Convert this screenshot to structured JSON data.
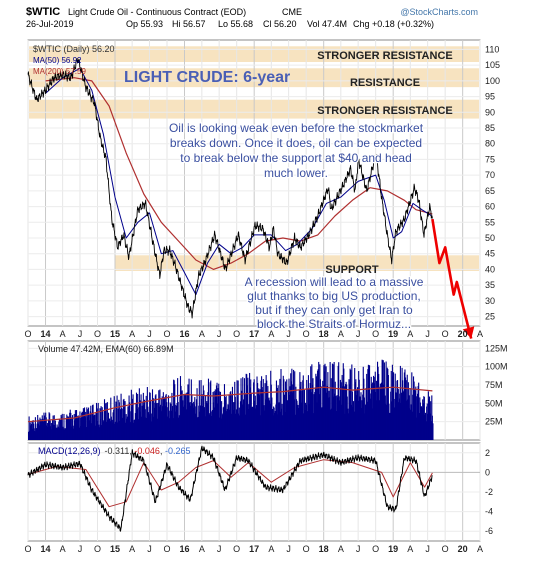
{
  "header": {
    "symbol": "$WTIC",
    "name": "Light Crude Oil - Continuous Contract (EOD)",
    "exchange": "CME",
    "date": "26-Jul-2019",
    "open": "Op 55.93",
    "high": "Hi 56.57",
    "low": "Lo 55.68",
    "close": "Cl 56.20",
    "volume": "Vol 47.4M",
    "change": "Chg +0.18 (+0.32%)",
    "brand": "@StockCharts.com"
  },
  "legend": {
    "price": "$WTIC (Daily) 56.20",
    "ma50": "MA(50) 56.92",
    "ma200": "MA(200) 57.59",
    "volume": "Volume 47.42M, EMA(60) 66.89M",
    "macd_label": "MACD(12,26,9)",
    "macd_v1": "-0.311",
    "macd_v2": "-0.046",
    "macd_v3": "-0.265"
  },
  "annotations": {
    "title": "LIGHT CRUDE: 6-year",
    "zone_stronger_top": "STRONGER RESISTANCE",
    "zone_resistance": "RESISTANCE",
    "zone_stronger_mid": "STRONGER RESISTANCE",
    "zone_support": "SUPPORT",
    "note_top": [
      "Oil is looking weak even before the stockmarket",
      "breaks down. Once it does, oil can be expected",
      "to break below the support at $40 and head",
      "much lower."
    ],
    "note_bottom": [
      "A recession will lead to a massive",
      "glut thanks to big US production,",
      "but if they can only get Iran to",
      "block the Straits of Hormuz..."
    ]
  },
  "colors": {
    "price": "#000000",
    "ma50": "#00008b",
    "ma200": "#b03030",
    "volume": "#00008b",
    "arrow": "#ee0000",
    "zone": "#f5dcb0",
    "annotation_text": "#3a4fa0"
  },
  "chart_data": [
    {
      "type": "line",
      "title": "$WTIC (Daily)",
      "y_axis": {
        "ticks": [
          110,
          105,
          100,
          95,
          90,
          85,
          80,
          75,
          70,
          65,
          60,
          55,
          50,
          45,
          40,
          35,
          30,
          25
        ],
        "range": [
          22,
          113
        ]
      },
      "x_axis": {
        "ticks": [
          "O",
          "14",
          "A",
          "J",
          "O",
          "15",
          "A",
          "J",
          "O",
          "16",
          "A",
          "J",
          "O",
          "17",
          "A",
          "J",
          "O",
          "18",
          "A",
          "J",
          "O",
          "19",
          "A",
          "J",
          "O",
          "20",
          "A"
        ],
        "range": [
          "2013-10-01",
          "2020-04-01"
        ]
      },
      "zones": [
        {
          "label": "STRONGER RESISTANCE",
          "range": [
            106,
            111
          ]
        },
        {
          "label": "RESISTANCE",
          "range": [
            98,
            104
          ]
        },
        {
          "label": "STRONGER RESISTANCE",
          "range": [
            88,
            94
          ]
        },
        {
          "label": "SUPPORT",
          "range": [
            39.5,
            44.5
          ]
        }
      ],
      "series": [
        {
          "name": "$WTIC",
          "points": [
            [
              "2013-10-01",
              102
            ],
            [
              "2013-11-15",
              94
            ],
            [
              "2014-01-01",
              97
            ],
            [
              "2014-02-15",
              101
            ],
            [
              "2014-04-01",
              102
            ],
            [
              "2014-05-15",
              101
            ],
            [
              "2014-06-20",
              107
            ],
            [
              "2014-08-01",
              98
            ],
            [
              "2014-09-15",
              93
            ],
            [
              "2014-10-15",
              82
            ],
            [
              "2014-11-15",
              75
            ],
            [
              "2014-12-15",
              56
            ],
            [
              "2015-01-15",
              47
            ],
            [
              "2015-02-15",
              51
            ],
            [
              "2015-03-15",
              44
            ],
            [
              "2015-05-01",
              59
            ],
            [
              "2015-06-10",
              61
            ],
            [
              "2015-07-15",
              50
            ],
            [
              "2015-08-24",
              38
            ],
            [
              "2015-09-15",
              46
            ],
            [
              "2015-10-15",
              46
            ],
            [
              "2015-11-15",
              41
            ],
            [
              "2015-12-15",
              35
            ],
            [
              "2016-01-20",
              28
            ],
            [
              "2016-02-11",
              26
            ],
            [
              "2016-03-15",
              38
            ],
            [
              "2016-04-15",
              42
            ],
            [
              "2016-06-08",
              51
            ],
            [
              "2016-08-03",
              40
            ],
            [
              "2016-10-10",
              51
            ],
            [
              "2016-11-14",
              43
            ],
            [
              "2017-01-06",
              54
            ],
            [
              "2017-02-15",
              53
            ],
            [
              "2017-03-22",
              47
            ],
            [
              "2017-04-12",
              53
            ],
            [
              "2017-05-05",
              45
            ],
            [
              "2017-06-21",
              42
            ],
            [
              "2017-08-01",
              50
            ],
            [
              "2017-09-01",
              47
            ],
            [
              "2017-10-15",
              51
            ],
            [
              "2017-12-01",
              57
            ],
            [
              "2018-01-25",
              66
            ],
            [
              "2018-02-09",
              59
            ],
            [
              "2018-04-15",
              67
            ],
            [
              "2018-05-22",
              72
            ],
            [
              "2018-06-15",
              65
            ],
            [
              "2018-07-03",
              75
            ],
            [
              "2018-08-15",
              65
            ],
            [
              "2018-10-03",
              77
            ],
            [
              "2018-11-01",
              63
            ],
            [
              "2018-12-01",
              51
            ],
            [
              "2018-12-24",
              43
            ],
            [
              "2019-01-15",
              52
            ],
            [
              "2019-03-01",
              56
            ],
            [
              "2019-04-23",
              66
            ],
            [
              "2019-05-15",
              62
            ],
            [
              "2019-06-12",
              51
            ],
            [
              "2019-07-11",
              60
            ],
            [
              "2019-07-26",
              56.2
            ]
          ]
        },
        {
          "name": "MA(50)",
          "points": [
            [
              "2014-01-01",
              96
            ],
            [
              "2014-04-01",
              101
            ],
            [
              "2014-07-01",
              104
            ],
            [
              "2014-09-01",
              97
            ],
            [
              "2014-11-01",
              83
            ],
            [
              "2015-01-01",
              63
            ],
            [
              "2015-03-01",
              50
            ],
            [
              "2015-05-01",
              55
            ],
            [
              "2015-07-01",
              58
            ],
            [
              "2015-09-01",
              45
            ],
            [
              "2015-11-01",
              46
            ],
            [
              "2016-01-01",
              39
            ],
            [
              "2016-03-01",
              32
            ],
            [
              "2016-05-01",
              42
            ],
            [
              "2016-07-01",
              48
            ],
            [
              "2016-09-01",
              45
            ],
            [
              "2016-11-01",
              47
            ],
            [
              "2017-01-01",
              51
            ],
            [
              "2017-04-01",
              51
            ],
            [
              "2017-06-15",
              46
            ],
            [
              "2017-08-15",
              48
            ],
            [
              "2017-11-01",
              53
            ],
            [
              "2018-01-15",
              61
            ],
            [
              "2018-04-01",
              63
            ],
            [
              "2018-07-01",
              68
            ],
            [
              "2018-10-01",
              70
            ],
            [
              "2018-11-15",
              62
            ],
            [
              "2019-01-01",
              50
            ],
            [
              "2019-02-15",
              52
            ],
            [
              "2019-04-15",
              61
            ],
            [
              "2019-06-01",
              59
            ],
            [
              "2019-07-26",
              56.92
            ]
          ]
        },
        {
          "name": "MA(200)",
          "points": [
            [
              "2014-01-01",
              100
            ],
            [
              "2014-06-01",
              101
            ],
            [
              "2014-09-01",
              100
            ],
            [
              "2014-12-01",
              92
            ],
            [
              "2015-03-01",
              77
            ],
            [
              "2015-06-01",
              64
            ],
            [
              "2015-09-01",
              55
            ],
            [
              "2015-12-01",
              49
            ],
            [
              "2016-03-01",
              43
            ],
            [
              "2016-06-01",
              40
            ],
            [
              "2016-09-01",
              42
            ],
            [
              "2016-12-01",
              45
            ],
            [
              "2017-03-01",
              49
            ],
            [
              "2017-06-01",
              50
            ],
            [
              "2017-09-01",
              49
            ],
            [
              "2017-12-01",
              51
            ],
            [
              "2018-03-01",
              57
            ],
            [
              "2018-06-01",
              62
            ],
            [
              "2018-09-01",
              66
            ],
            [
              "2018-12-01",
              65
            ],
            [
              "2019-03-01",
              62
            ],
            [
              "2019-05-01",
              59
            ],
            [
              "2019-07-26",
              57.59
            ]
          ]
        },
        {
          "name": "projection",
          "points": [
            [
              "2019-07-26",
              56
            ],
            [
              "2019-09-01",
              42
            ],
            [
              "2019-10-01",
              47
            ],
            [
              "2019-11-15",
              32
            ],
            [
              "2019-12-01",
              36
            ],
            [
              "2020-02-15",
              18
            ]
          ]
        }
      ]
    },
    {
      "type": "bar",
      "title": "Volume",
      "y_axis": {
        "ticks": [
          "125M",
          "100M",
          "75M",
          "50M",
          "25M"
        ]
      },
      "range": [
        0,
        135
      ],
      "series": [
        {
          "name": "Volume (M)",
          "points": [
            [
              "2013-10-01",
              25
            ],
            [
              "2014-01-01",
              28
            ],
            [
              "2014-04-01",
              30
            ],
            [
              "2014-07-01",
              33
            ],
            [
              "2014-10-01",
              38
            ],
            [
              "2015-01-01",
              48
            ],
            [
              "2015-04-01",
              52
            ],
            [
              "2015-07-01",
              55
            ],
            [
              "2015-10-01",
              58
            ],
            [
              "2016-01-01",
              68
            ],
            [
              "2016-04-01",
              65
            ],
            [
              "2016-07-01",
              62
            ],
            [
              "2016-10-01",
              66
            ],
            [
              "2017-01-01",
              70
            ],
            [
              "2017-04-01",
              72
            ],
            [
              "2017-07-01",
              74
            ],
            [
              "2017-10-01",
              76
            ],
            [
              "2018-01-01",
              82
            ],
            [
              "2018-04-01",
              78
            ],
            [
              "2018-07-01",
              76
            ],
            [
              "2018-10-01",
              84
            ],
            [
              "2019-01-01",
              80
            ],
            [
              "2019-04-01",
              72
            ],
            [
              "2019-07-26",
              47.42
            ]
          ]
        },
        {
          "name": "EMA(60)",
          "points": [
            [
              "2013-10-01",
              25
            ],
            [
              "2014-06-01",
              30
            ],
            [
              "2015-01-01",
              44
            ],
            [
              "2015-06-01",
              52
            ],
            [
              "2016-01-01",
              62
            ],
            [
              "2016-06-01",
              60
            ],
            [
              "2017-01-01",
              64
            ],
            [
              "2017-06-01",
              66
            ],
            [
              "2018-01-01",
              72
            ],
            [
              "2018-06-01",
              68
            ],
            [
              "2019-01-01",
              72
            ],
            [
              "2019-07-26",
              66.89
            ]
          ]
        }
      ]
    },
    {
      "type": "line",
      "title": "MACD(12,26,9)",
      "y_axis": {
        "ticks": [
          2,
          0,
          -2,
          -4,
          -6
        ],
        "range": [
          -7,
          3
        ]
      },
      "series": [
        {
          "name": "MACD",
          "points": [
            [
              "2013-10-01",
              -0.3
            ],
            [
              "2014-01-01",
              0.8
            ],
            [
              "2014-04-01",
              0.5
            ],
            [
              "2014-07-01",
              0.9
            ],
            [
              "2014-09-01",
              -1.8
            ],
            [
              "2014-12-01",
              -4.5
            ],
            [
              "2015-02-01",
              -5.8
            ],
            [
              "2015-04-01",
              2.0
            ],
            [
              "2015-06-01",
              1.2
            ],
            [
              "2015-08-01",
              -3.0
            ],
            [
              "2015-10-01",
              0.8
            ],
            [
              "2015-12-01",
              -1.5
            ],
            [
              "2016-02-01",
              -2.8
            ],
            [
              "2016-04-01",
              2.5
            ],
            [
              "2016-06-01",
              1.5
            ],
            [
              "2016-08-01",
              -1.8
            ],
            [
              "2016-10-01",
              1.5
            ],
            [
              "2016-12-01",
              1.2
            ],
            [
              "2017-03-01",
              -1.5
            ],
            [
              "2017-06-01",
              -1.8
            ],
            [
              "2017-09-01",
              1.2
            ],
            [
              "2018-01-01",
              1.8
            ],
            [
              "2018-04-01",
              1.0
            ],
            [
              "2018-07-01",
              1.5
            ],
            [
              "2018-10-01",
              1.2
            ],
            [
              "2018-12-01",
              -3.5
            ],
            [
              "2019-01-15",
              -3.8
            ],
            [
              "2019-03-01",
              1.5
            ],
            [
              "2019-05-01",
              1.2
            ],
            [
              "2019-06-15",
              -2.5
            ],
            [
              "2019-07-26",
              -0.311
            ]
          ]
        },
        {
          "name": "Signal",
          "points": [
            [
              "2013-10-01",
              -0.2
            ],
            [
              "2014-03-01",
              0.6
            ],
            [
              "2014-08-01",
              0.3
            ],
            [
              "2014-12-01",
              -3.5
            ],
            [
              "2015-03-01",
              -3.0
            ],
            [
              "2015-06-01",
              1.0
            ],
            [
              "2015-09-01",
              -1.8
            ],
            [
              "2015-12-01",
              -1.0
            ],
            [
              "2016-03-01",
              0.5
            ],
            [
              "2016-06-01",
              1.2
            ],
            [
              "2016-09-01",
              -0.5
            ],
            [
              "2016-12-01",
              1.0
            ],
            [
              "2017-04-01",
              -1.0
            ],
            [
              "2017-08-01",
              0.5
            ],
            [
              "2018-01-01",
              1.3
            ],
            [
              "2018-06-01",
              1.0
            ],
            [
              "2018-11-01",
              0.0
            ],
            [
              "2019-01-01",
              -2.5
            ],
            [
              "2019-04-01",
              1.0
            ],
            [
              "2019-06-15",
              -1.5
            ],
            [
              "2019-07-26",
              -0.046
            ]
          ]
        }
      ]
    }
  ]
}
